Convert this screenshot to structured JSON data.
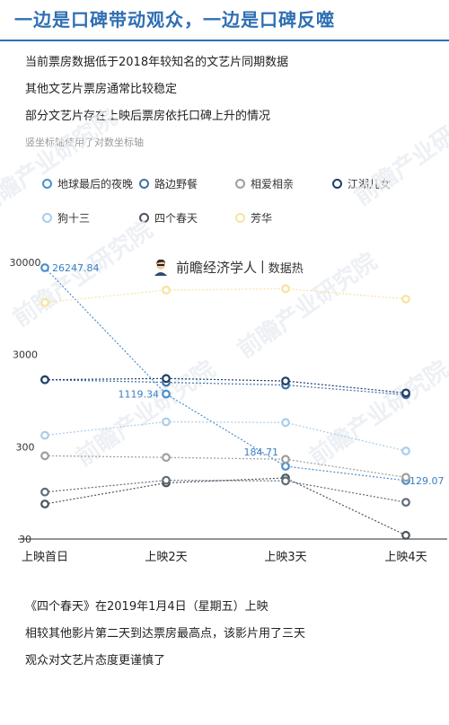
{
  "header": {
    "title": "一边是口碑带动观众，一边是口碑反噬",
    "accent_color": "#2f6fb3"
  },
  "notes": [
    "当前票房数据低于2018年较知名的文艺片同期数据",
    "其他文艺片票房通常比较稳定",
    "部分文艺片存在上映后票房依托口碑上升的情况"
  ],
  "subnote": "竖坐标轴使用了对数坐标轴",
  "brand": {
    "name": "前瞻经济学人",
    "sub": "数据热",
    "watermark": "前瞻产业研究院"
  },
  "chart_data": {
    "type": "line",
    "y_scale": "log",
    "ylim": [
      30,
      30000
    ],
    "yticks": [
      "30",
      "300",
      "3000",
      "30000"
    ],
    "categories": [
      "上映首日",
      "上映2天",
      "上映3天",
      "上映4天"
    ],
    "series": [
      {
        "name": "地球最后的夜晚",
        "color": "#4a8fcf",
        "values": [
          26247.84,
          1119.34,
          184.71,
          129.07
        ],
        "labels": [
          "26247.84",
          "1119.34",
          "184.71",
          "129.07"
        ]
      },
      {
        "name": "路边野餐",
        "color": "#3f72a8",
        "values": [
          1600,
          1500,
          1400,
          1100
        ],
        "labels": []
      },
      {
        "name": "相爱相亲",
        "color": "#9e9e9e",
        "values": [
          240,
          230,
          220,
          140
        ],
        "labels": []
      },
      {
        "name": "江湖儿女",
        "color": "#1d3e66",
        "values": [
          1600,
          1650,
          1550,
          1150
        ],
        "labels": []
      },
      {
        "name": "狗十三",
        "color": "#a9cdea",
        "values": [
          400,
          560,
          550,
          270
        ],
        "labels": []
      },
      {
        "name": "四个春天",
        "color": "#4d545c",
        "values": [
          72,
          122,
          138,
          33
        ],
        "labels": []
      },
      {
        "name": "芳华",
        "color": "#f7e3a0",
        "values": [
          11000,
          15000,
          15500,
          12000
        ],
        "labels": []
      },
      {
        "name": "",
        "color": "#5f6c7a",
        "values": [
          97,
          130,
          128,
          75
        ],
        "labels": []
      }
    ]
  },
  "bottom_notes": [
    "《四个春天》在2019年1月4日（星期五）上映",
    "相较其他影片第二天到达票房最高点，该影片用了三天",
    "观众对文艺片态度更谨慎了"
  ]
}
